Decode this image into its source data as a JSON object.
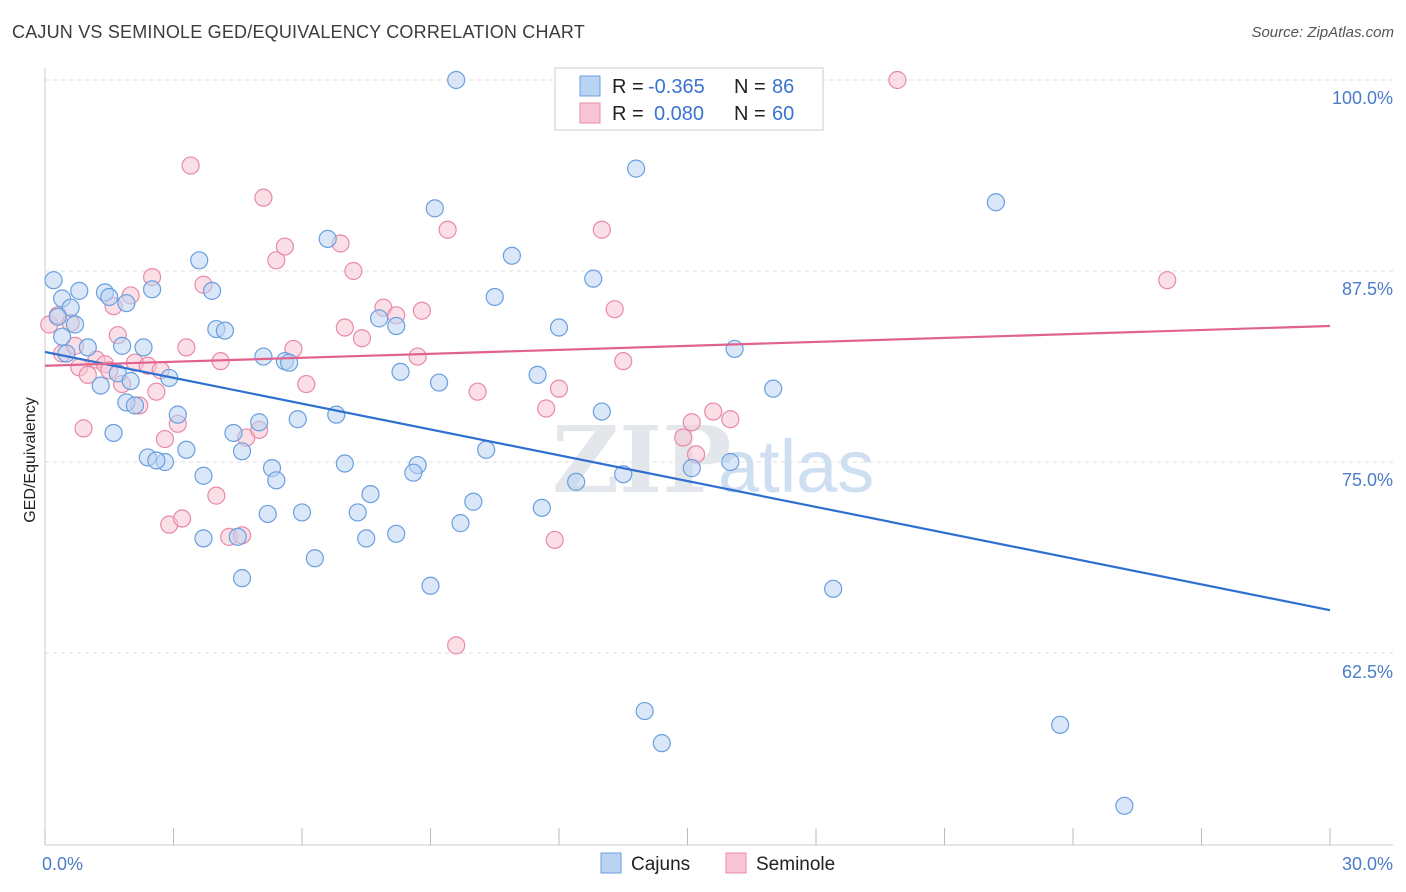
{
  "title": "CAJUN VS SEMINOLE GED/EQUIVALENCY CORRELATION CHART",
  "source": "Source: ZipAtlas.com",
  "colors": {
    "cajun_fill": "#b9d3f3",
    "cajun_stroke": "#6a9fdf",
    "cajun_line": "#2e6fcf",
    "seminole_fill": "#f7c5d3",
    "seminole_stroke": "#e98aa7",
    "seminole_line": "#e0628d",
    "axis_text": "#4a7cc9",
    "grid": "#dddddd"
  },
  "legend": {
    "rows": [
      {
        "r_label": "R =",
        "r_value": "-0.365",
        "n_label": "N =",
        "n_value": "86",
        "series": "cajun"
      },
      {
        "r_label": "R =",
        "r_value": "0.080",
        "n_label": "N =",
        "n_value": "60",
        "series": "seminole"
      }
    ]
  },
  "bottom_legend": [
    "Cajuns",
    "Seminole"
  ],
  "watermark": {
    "zip": "ZIP",
    "atlas": "atlas"
  },
  "chart_data": {
    "type": "scatter",
    "title": "CAJUN VS SEMINOLE GED/EQUIVALENCY CORRELATION CHART",
    "xlabel": "",
    "ylabel": "GED/Equivalency",
    "xlim": [
      0.0,
      30.0
    ],
    "ylim": [
      50.0,
      101.5
    ],
    "x_tick_labels": [
      "0.0%",
      "30.0%"
    ],
    "y_ticks": [
      62.5,
      75.0,
      87.5,
      100.0
    ],
    "y_tick_labels": [
      "62.5%",
      "75.0%",
      "87.5%",
      "100.0%"
    ],
    "grid": true,
    "legend_placement": "top-center",
    "series": [
      {
        "name": "Cajuns",
        "r": -0.365,
        "n": 86,
        "trend": {
          "x": [
            0.0,
            30.0
          ],
          "y": [
            82.2,
            65.3
          ]
        },
        "points": [
          [
            0.2,
            86.9
          ],
          [
            0.4,
            85.7
          ],
          [
            0.6,
            85.1
          ],
          [
            0.8,
            86.2
          ],
          [
            0.3,
            84.5
          ],
          [
            0.5,
            82.1
          ],
          [
            0.7,
            84.0
          ],
          [
            1.0,
            82.5
          ],
          [
            1.4,
            86.1
          ],
          [
            1.5,
            85.8
          ],
          [
            1.9,
            85.4
          ],
          [
            1.8,
            82.6
          ],
          [
            2.3,
            82.5
          ],
          [
            2.5,
            86.3
          ],
          [
            1.3,
            80.0
          ],
          [
            1.7,
            80.8
          ],
          [
            2.0,
            80.3
          ],
          [
            1.9,
            78.9
          ],
          [
            2.1,
            78.7
          ],
          [
            1.6,
            76.9
          ],
          [
            2.4,
            75.3
          ],
          [
            2.8,
            75.0
          ],
          [
            2.9,
            80.5
          ],
          [
            3.1,
            78.1
          ],
          [
            3.3,
            75.8
          ],
          [
            3.6,
            88.2
          ],
          [
            3.9,
            86.2
          ],
          [
            4.0,
            83.7
          ],
          [
            4.2,
            83.6
          ],
          [
            4.4,
            76.9
          ],
          [
            4.6,
            75.7
          ],
          [
            5.0,
            77.6
          ],
          [
            5.1,
            81.9
          ],
          [
            5.3,
            74.6
          ],
          [
            5.6,
            81.6
          ],
          [
            5.7,
            81.5
          ],
          [
            5.9,
            77.8
          ],
          [
            5.4,
            73.8
          ],
          [
            3.7,
            74.1
          ],
          [
            3.7,
            70.0
          ],
          [
            4.5,
            70.1
          ],
          [
            4.6,
            67.4
          ],
          [
            5.2,
            71.6
          ],
          [
            6.0,
            71.7
          ],
          [
            6.3,
            68.7
          ],
          [
            6.6,
            89.6
          ],
          [
            6.8,
            78.1
          ],
          [
            7.0,
            74.9
          ],
          [
            7.3,
            71.7
          ],
          [
            7.6,
            72.9
          ],
          [
            7.5,
            70.0
          ],
          [
            7.8,
            84.4
          ],
          [
            8.2,
            83.9
          ],
          [
            8.3,
            80.9
          ],
          [
            8.7,
            74.8
          ],
          [
            8.6,
            74.3
          ],
          [
            8.2,
            70.3
          ],
          [
            9.0,
            66.9
          ],
          [
            9.1,
            91.6
          ],
          [
            9.2,
            80.2
          ],
          [
            9.6,
            100.0
          ],
          [
            9.7,
            71.0
          ],
          [
            10.0,
            72.4
          ],
          [
            10.3,
            75.8
          ],
          [
            10.5,
            85.8
          ],
          [
            10.9,
            88.5
          ],
          [
            11.5,
            80.7
          ],
          [
            11.6,
            72.0
          ],
          [
            12.0,
            83.8
          ],
          [
            12.4,
            73.7
          ],
          [
            12.8,
            87.0
          ],
          [
            13.0,
            78.3
          ],
          [
            13.8,
            94.2
          ],
          [
            13.5,
            74.2
          ],
          [
            14.0,
            58.7
          ],
          [
            14.4,
            56.6
          ],
          [
            15.1,
            74.6
          ],
          [
            16.1,
            82.4
          ],
          [
            16.0,
            75.0
          ],
          [
            17.0,
            79.8
          ],
          [
            18.4,
            66.7
          ],
          [
            22.2,
            92.0
          ],
          [
            23.7,
            57.8
          ],
          [
            25.2,
            52.5
          ],
          [
            0.4,
            83.2
          ],
          [
            2.6,
            75.1
          ]
        ]
      },
      {
        "name": "Seminole",
        "r": 0.08,
        "n": 60,
        "trend": {
          "x": [
            0.0,
            30.0
          ],
          "y": [
            81.3,
            83.9
          ]
        },
        "points": [
          [
            0.1,
            84.0
          ],
          [
            0.3,
            84.6
          ],
          [
            0.4,
            82.1
          ],
          [
            0.6,
            84.1
          ],
          [
            0.7,
            82.6
          ],
          [
            0.8,
            81.2
          ],
          [
            0.9,
            77.2
          ],
          [
            1.0,
            80.7
          ],
          [
            1.2,
            81.7
          ],
          [
            1.4,
            81.4
          ],
          [
            1.5,
            81.0
          ],
          [
            1.6,
            85.2
          ],
          [
            1.7,
            83.3
          ],
          [
            1.8,
            80.1
          ],
          [
            2.0,
            85.9
          ],
          [
            2.1,
            81.5
          ],
          [
            2.2,
            78.7
          ],
          [
            2.4,
            81.3
          ],
          [
            2.5,
            87.1
          ],
          [
            2.6,
            79.6
          ],
          [
            2.7,
            81.0
          ],
          [
            2.8,
            76.5
          ],
          [
            2.9,
            70.9
          ],
          [
            3.1,
            77.5
          ],
          [
            3.2,
            71.3
          ],
          [
            3.3,
            82.5
          ],
          [
            3.4,
            94.4
          ],
          [
            3.7,
            86.6
          ],
          [
            4.0,
            72.8
          ],
          [
            4.1,
            81.6
          ],
          [
            4.3,
            70.1
          ],
          [
            4.6,
            70.2
          ],
          [
            4.7,
            76.6
          ],
          [
            5.0,
            77.1
          ],
          [
            5.1,
            92.3
          ],
          [
            5.4,
            88.2
          ],
          [
            5.6,
            89.1
          ],
          [
            5.8,
            82.4
          ],
          [
            6.1,
            80.1
          ],
          [
            6.9,
            89.3
          ],
          [
            7.0,
            83.8
          ],
          [
            7.2,
            87.5
          ],
          [
            7.4,
            83.1
          ],
          [
            7.9,
            85.1
          ],
          [
            8.2,
            84.6
          ],
          [
            8.7,
            81.9
          ],
          [
            8.8,
            84.9
          ],
          [
            9.4,
            90.2
          ],
          [
            9.6,
            63.0
          ],
          [
            10.1,
            79.6
          ],
          [
            11.7,
            78.5
          ],
          [
            11.9,
            69.9
          ],
          [
            12.0,
            79.8
          ],
          [
            13.0,
            90.2
          ],
          [
            13.3,
            85.0
          ],
          [
            13.5,
            81.6
          ],
          [
            14.9,
            76.6
          ],
          [
            15.1,
            77.6
          ],
          [
            15.6,
            78.3
          ],
          [
            16.0,
            77.8
          ]
        ]
      }
    ],
    "extra_points_seminole": [
      [
        19.9,
        100.0
      ],
      [
        26.2,
        86.9
      ],
      [
        15.2,
        75.5
      ]
    ]
  },
  "axes": {
    "ylabel": "GED/Equivalency",
    "x_tick_labels": {
      "left": "0.0%",
      "right": "30.0%"
    },
    "y_tick_labels": [
      "100.0%",
      "87.5%",
      "75.0%",
      "62.5%"
    ]
  }
}
